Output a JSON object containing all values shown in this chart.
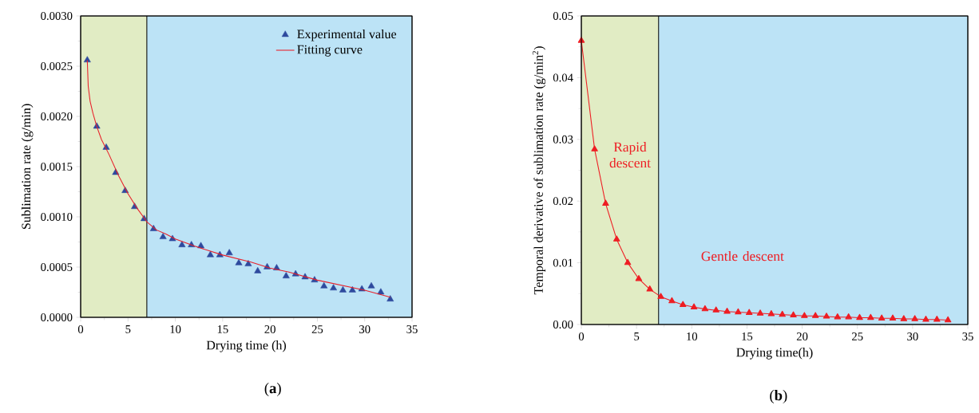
{
  "chart_data": [
    {
      "type": "scatter",
      "xlabel": "Drying time (h)",
      "ylabel": "Sublimation rate (g/min)",
      "xlim": [
        0,
        35
      ],
      "xticks": [
        0,
        5,
        10,
        15,
        20,
        25,
        30,
        35
      ],
      "ylim": [
        0,
        0.003
      ],
      "yticks": [
        {
          "value": 0,
          "label": "0.0000"
        },
        {
          "value": 0.0005,
          "label": "0.0005"
        },
        {
          "value": 0.001,
          "label": "0.0010"
        },
        {
          "value": 0.0015,
          "label": "0.0015"
        },
        {
          "value": 0.002,
          "label": "0.0020"
        },
        {
          "value": 0.0025,
          "label": "0.0025"
        },
        {
          "value": 0.003,
          "label": "0.0030"
        }
      ],
      "legend": "top right",
      "bands": [
        {
          "axis": "x",
          "from": 0,
          "to": 7,
          "color": "#e1ecc4"
        },
        {
          "axis": "x",
          "from": 7,
          "to": 35,
          "color": "#bce3f6"
        }
      ],
      "series": [
        {
          "name": "Experimental value",
          "type": "scatter",
          "marker": "triangle",
          "color": "#2e4a9e",
          "x": [
            0.7,
            1.7,
            2.7,
            3.7,
            4.7,
            5.7,
            6.7,
            7.7,
            8.7,
            9.7,
            10.7,
            11.7,
            12.7,
            13.7,
            14.7,
            15.7,
            16.7,
            17.7,
            18.7,
            19.7,
            20.7,
            21.7,
            22.7,
            23.7,
            24.7,
            25.7,
            26.7,
            27.7,
            28.7,
            29.7,
            30.7,
            31.7,
            32.7
          ],
          "values": [
            0.00256,
            0.0019,
            0.00169,
            0.00144,
            0.00126,
            0.0011,
            0.00098,
            0.00088,
            0.0008,
            0.00078,
            0.00072,
            0.00072,
            0.00071,
            0.00062,
            0.00062,
            0.00064,
            0.00054,
            0.00053,
            0.00046,
            0.0005,
            0.00049,
            0.00041,
            0.00043,
            0.0004,
            0.00037,
            0.00031,
            0.00029,
            0.00027,
            0.00027,
            0.00028,
            0.00031,
            0.00025,
            0.00018
          ]
        },
        {
          "name": "Fitting curve",
          "type": "line",
          "color": "#e8202a",
          "x": [
            0.7,
            0.8,
            1.0,
            1.3,
            1.7,
            2.2,
            3.0,
            4.0,
            5.0,
            6.0,
            7.0,
            8.0,
            9.0,
            10.0,
            12.0,
            15.0,
            18.0,
            20.0,
            22.0,
            25.0,
            28.0,
            30.0,
            32.7
          ],
          "values": [
            0.00256,
            0.0023,
            0.00215,
            0.00203,
            0.0019,
            0.00177,
            0.00162,
            0.00141,
            0.00123,
            0.00108,
            0.00095,
            0.00087,
            0.00083,
            0.00078,
            0.00071,
            0.00062,
            0.00055,
            0.00049,
            0.00045,
            0.00037,
            0.00031,
            0.00027,
            0.0002
          ]
        }
      ],
      "annotations": [
        "(**a**)"
      ]
    },
    {
      "type": "line",
      "xlabel": "Drying time(h)",
      "ylabel": "Temporal derivative of sublimation rate (g/min$^{2}$)",
      "xlim": [
        0,
        35
      ],
      "xticks": [
        0,
        5,
        10,
        15,
        20,
        25,
        30,
        35
      ],
      "ylim": [
        0,
        0.05
      ],
      "yticks": [
        {
          "value": 0,
          "label": "0.00"
        },
        {
          "value": 0.01,
          "label": "0.01"
        },
        {
          "value": 0.02,
          "label": "0.02"
        },
        {
          "value": 0.03,
          "label": "0.03"
        },
        {
          "value": 0.04,
          "label": "0.04"
        },
        {
          "value": 0.05,
          "label": "0.05"
        }
      ],
      "marker": "triangle",
      "bands": [
        {
          "axis": "x",
          "from": 0,
          "to": 7,
          "color": "#e1ecc4"
        },
        {
          "axis": "x",
          "from": 7,
          "to": 35,
          "color": "#bce3f6"
        }
      ],
      "series": [
        {
          "color": "#ee1d23",
          "x": [
            0,
            1.2,
            2.2,
            3.2,
            4.2,
            5.2,
            6.2,
            7.2,
            8.2,
            9.2,
            10.2,
            11.2,
            12.2,
            13.2,
            14.2,
            15.2,
            16.2,
            17.2,
            18.2,
            19.2,
            20.2,
            21.2,
            22.2,
            23.2,
            24.2,
            25.2,
            26.2,
            27.2,
            28.2,
            29.2,
            30.2,
            31.2,
            32.2,
            33.2
          ],
          "values": [
            0.046,
            0.0284,
            0.0196,
            0.0138,
            0.01,
            0.0074,
            0.0057,
            0.0045,
            0.0038,
            0.0032,
            0.0028,
            0.0025,
            0.0023,
            0.0021,
            0.002,
            0.0019,
            0.0018,
            0.0017,
            0.0016,
            0.0015,
            0.0014,
            0.0014,
            0.0013,
            0.0012,
            0.0012,
            0.0011,
            0.0011,
            0.001,
            0.001,
            0.0009,
            0.0009,
            0.0008,
            0.0008,
            0.0007
          ]
        }
      ],
      "annotations": [
        "Rapid descent",
        "Gentle descent",
        "(**b**)"
      ]
    }
  ]
}
